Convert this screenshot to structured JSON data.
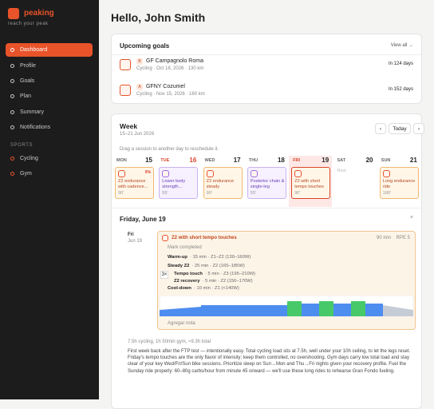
{
  "sidebar": {
    "brand": "peaking",
    "tagline": "reach your peak",
    "nav": [
      "Dashboard",
      "Profile",
      "Goals",
      "Plan",
      "Summary",
      "Notifications"
    ],
    "sports_heading": "SPORTS",
    "sports": [
      "Cycling",
      "Gym"
    ]
  },
  "header": {
    "greeting": "Hello, John Smith"
  },
  "goals": {
    "title": "Upcoming goals",
    "view_all": "View all →",
    "items": [
      {
        "priority": "B",
        "name": "GF Campagnolo Roma",
        "meta": "Cycling · Oct 18, 2026 · 130 km",
        "countdown": "In 124 days"
      },
      {
        "priority": "A",
        "name": "GFNY Cozumel",
        "meta": "Cycling · Nov 15, 2026 · 160 km",
        "countdown": "In 152 days"
      }
    ]
  },
  "week": {
    "title": "Week",
    "range": "15–21 Jun 2026",
    "today": "Today",
    "hint": "Drag a session to another day to reschedule it.",
    "days": [
      {
        "dow": "MON",
        "date": "15",
        "session": {
          "title": "Z2 endurance with cadence...",
          "duration": "90'",
          "badge": "0%"
        }
      },
      {
        "dow": "TUE",
        "date": "16",
        "session": {
          "title": "Lower body strength...",
          "duration": "55'"
        }
      },
      {
        "dow": "WED",
        "date": "17",
        "session": {
          "title": "Z2 endurance steady",
          "duration": "90'"
        }
      },
      {
        "dow": "THU",
        "date": "18",
        "session": {
          "title": "Posterior chain & single-leg",
          "duration": "55'"
        }
      },
      {
        "dow": "FRI",
        "date": "19",
        "session": {
          "title": "Z2 with short tempo touches",
          "duration": "90'"
        }
      },
      {
        "dow": "SAT",
        "date": "20",
        "rest": "Rest"
      },
      {
        "dow": "SUN",
        "date": "21",
        "session": {
          "title": "Long endurance ride",
          "duration": "180'"
        }
      }
    ]
  },
  "detail": {
    "title": "Friday, June 19",
    "day": "Fri",
    "date": "Jun 19",
    "session": {
      "title": "Z2 with short tempo touches",
      "duration": "90 min",
      "rpe": "RPE 5",
      "mark_completed": "Mark completed",
      "repeat": "3×",
      "steps": [
        {
          "name": "Warm-up",
          "detail": "· 15 min · Z1–Z2 (130–160W)"
        },
        {
          "name": "Steady Z2",
          "detail": "· 25 min · Z2 (165–185W)"
        },
        {
          "name": "Tempo touch",
          "detail": "· 5 min · Z3 (195–210W)"
        },
        {
          "name": "Z2 recovery",
          "detail": "· 5 min · Z2 (150–170W)"
        },
        {
          "name": "Cool-down",
          "detail": "· 10 min · Z1 (<140W)"
        }
      ],
      "add_note": "Agregar nota"
    },
    "summary": "7.5h cycling, 1h 50min gym, ≈9.3h total",
    "notes": "First week back after the FTP test — intentionally easy. Total cycling load sits at 7.5h, well under your 10h ceiling, to let the legs reset. Friday's tempo touches are the only flavor of intensity; keep them controlled, no overshooting. Gym days carry low total load and stay clear of your key Wed/Fri/Sun bike sessions. Prioritize sleep on Sun→Mon and Thu→Fri nights given your recovery profile. Fuel the Sunday ride properly: 60–80g carbs/hour from minute 45 onward — we'll use these long rides to rehearse Gran Fondo fueling."
  }
}
